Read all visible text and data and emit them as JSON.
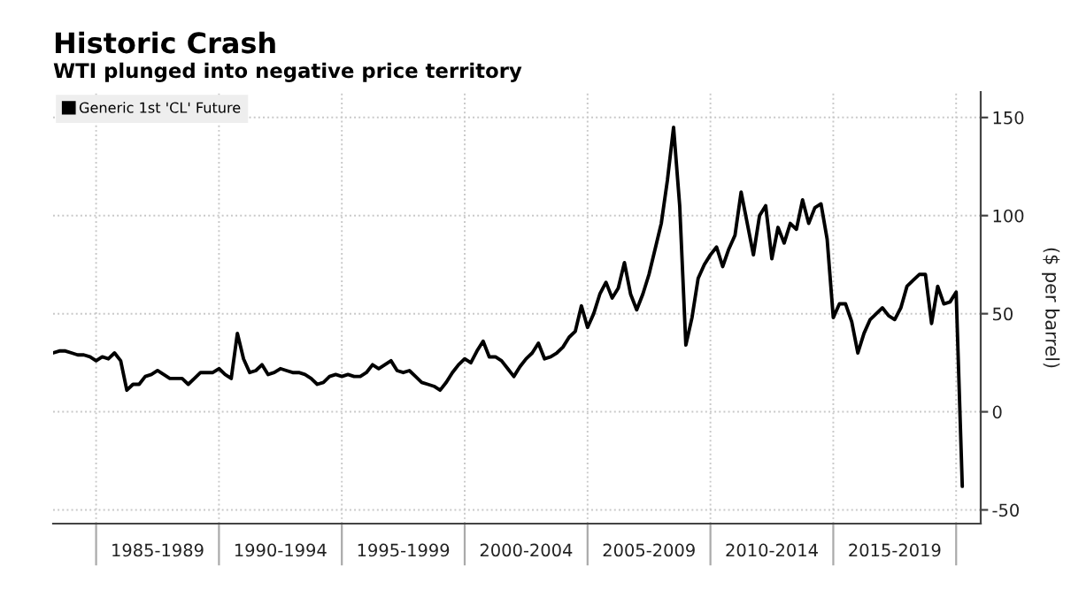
{
  "chart_data": {
    "type": "line",
    "title": "Historic Crash",
    "subtitle": "WTI plunged into negative price territory",
    "ylabel": "($ per barrel)",
    "categories": [
      null,
      null,
      null,
      null,
      null,
      null,
      null,
      null,
      null,
      null,
      null,
      null,
      null,
      null,
      null,
      null,
      null,
      "1985-1989",
      null,
      null,
      null,
      null,
      null,
      null,
      null,
      null,
      null,
      null,
      null,
      null,
      null,
      null,
      null,
      null,
      null,
      null,
      null,
      "1990-1994",
      null,
      null,
      null,
      null,
      null,
      null,
      null,
      null,
      null,
      null,
      null,
      null,
      null,
      null,
      null,
      null,
      null,
      null,
      null,
      "1995-1999",
      null,
      null,
      null,
      null,
      null,
      null,
      null,
      null,
      null,
      null,
      null,
      null,
      null,
      null,
      null,
      null,
      null,
      null,
      null,
      "2000-2004",
      null,
      null,
      null,
      null,
      null,
      null,
      null,
      null,
      null,
      null,
      null,
      null,
      null,
      null,
      null,
      null,
      null,
      null,
      null,
      "2005-2009",
      null,
      null,
      null,
      null,
      null,
      null,
      null,
      null,
      null,
      null,
      null,
      null,
      null,
      null,
      null,
      null,
      null,
      null,
      null,
      "2010-2014",
      null,
      null,
      null,
      null,
      null,
      null,
      null,
      null,
      null,
      null,
      null,
      null,
      null,
      null,
      null,
      null,
      null,
      null,
      null,
      "2015-2019",
      null,
      null,
      null,
      null,
      null,
      null,
      null,
      null,
      null,
      null,
      null,
      null,
      null,
      null
    ],
    "series": [
      {
        "name": "Generic 1st 'CL' Future",
        "color": "#000000",
        "values": [
          30,
          31,
          31,
          30,
          29,
          29,
          28,
          26,
          28,
          27,
          30,
          26,
          11,
          14,
          14,
          18,
          19,
          21,
          19,
          17,
          17,
          17,
          14,
          17,
          20,
          20,
          20,
          22,
          19,
          17,
          40,
          27,
          20,
          21,
          24,
          19,
          20,
          22,
          21,
          20,
          20,
          19,
          17,
          14,
          15,
          18,
          19,
          18,
          19,
          18,
          18,
          20,
          24,
          22,
          24,
          26,
          21,
          20,
          21,
          18,
          15,
          14,
          13,
          11,
          15,
          20,
          24,
          27,
          25,
          31,
          36,
          28,
          28,
          26,
          22,
          18,
          23,
          27,
          30,
          35,
          27,
          28,
          30,
          33,
          38,
          41,
          54,
          43,
          50,
          60,
          66,
          58,
          63,
          76,
          60,
          52,
          60,
          70,
          83,
          96,
          118,
          145,
          105,
          34,
          48,
          68,
          75,
          80,
          84,
          74,
          83,
          90,
          112,
          96,
          80,
          100,
          105,
          78,
          94,
          86,
          96,
          93,
          108,
          96,
          104,
          106,
          88,
          48,
          55,
          55,
          46,
          30,
          40,
          47,
          50,
          53,
          49,
          47,
          53,
          64,
          67,
          70,
          70,
          45,
          64,
          55,
          56,
          61,
          -38,
          null,
          null,
          null
        ]
      }
    ],
    "ylim": [
      -57,
      163
    ],
    "yticks": [
      -50,
      0,
      50,
      100,
      150
    ],
    "grid": true,
    "legend": "top left",
    "line_style": "solid"
  }
}
